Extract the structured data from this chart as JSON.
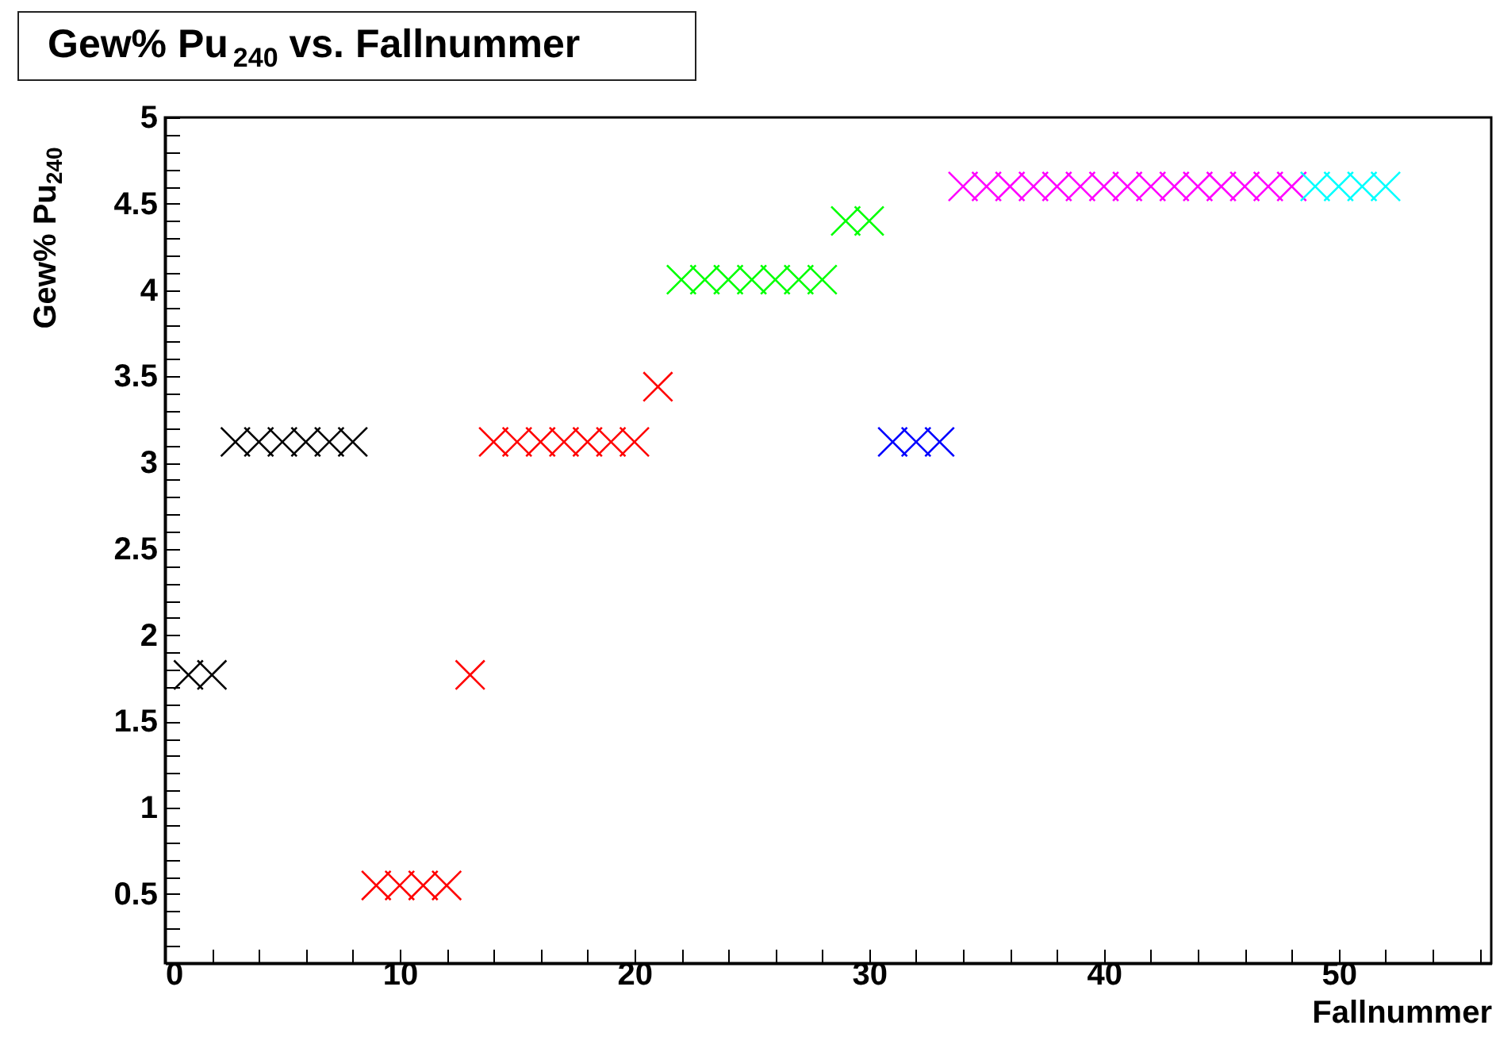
{
  "chart_data": {
    "type": "scatter",
    "title": "Gew% Pu$_{240}$ vs. Fallnummer",
    "xlabel": "Fallnummer",
    "ylabel": "Gew% Pu$_{240}$",
    "marker": "cross",
    "grid": false,
    "legend": false,
    "xlim": [
      0,
      56.5
    ],
    "ylim": [
      0.1,
      5
    ],
    "xticks": [
      0,
      {
        "value": 2,
        "label": null
      },
      {
        "value": 4,
        "label": null
      },
      {
        "value": 6,
        "label": null
      },
      {
        "value": 8,
        "label": null
      },
      10,
      {
        "value": 12,
        "label": null
      },
      {
        "value": 14,
        "label": null
      },
      {
        "value": 16,
        "label": null
      },
      {
        "value": 18,
        "label": null
      },
      20,
      {
        "value": 22,
        "label": null
      },
      {
        "value": 24,
        "label": null
      },
      {
        "value": 26,
        "label": null
      },
      {
        "value": 28,
        "label": null
      },
      30,
      {
        "value": 32,
        "label": null
      },
      {
        "value": 34,
        "label": null
      },
      {
        "value": 36,
        "label": null
      },
      {
        "value": 38,
        "label": null
      },
      40,
      {
        "value": 42,
        "label": null
      },
      {
        "value": 44,
        "label": null
      },
      {
        "value": 46,
        "label": null
      },
      {
        "value": 48,
        "label": null
      },
      50,
      {
        "value": 52,
        "label": null
      },
      {
        "value": 54,
        "label": null
      },
      {
        "value": 56,
        "label": null
      }
    ],
    "yticks": [
      {
        "value": 0.2,
        "label": null
      },
      {
        "value": 0.3,
        "label": null
      },
      {
        "value": 0.4,
        "label": null
      },
      0.5,
      {
        "value": 0.6,
        "label": null
      },
      {
        "value": 0.7,
        "label": null
      },
      {
        "value": 0.8,
        "label": null
      },
      {
        "value": 0.9,
        "label": null
      },
      1,
      {
        "value": 1.1,
        "label": null
      },
      {
        "value": 1.2,
        "label": null
      },
      {
        "value": 1.3,
        "label": null
      },
      {
        "value": 1.4,
        "label": null
      },
      1.5,
      {
        "value": 1.6,
        "label": null
      },
      {
        "value": 1.7,
        "label": null
      },
      {
        "value": 1.8,
        "label": null
      },
      {
        "value": 1.9,
        "label": null
      },
      2,
      {
        "value": 2.1,
        "label": null
      },
      {
        "value": 2.2,
        "label": null
      },
      {
        "value": 2.3,
        "label": null
      },
      {
        "value": 2.4,
        "label": null
      },
      2.5,
      {
        "value": 2.6,
        "label": null
      },
      {
        "value": 2.7,
        "label": null
      },
      {
        "value": 2.8,
        "label": null
      },
      {
        "value": 2.9,
        "label": null
      },
      3,
      {
        "value": 3.1,
        "label": null
      },
      {
        "value": 3.2,
        "label": null
      },
      {
        "value": 3.3,
        "label": null
      },
      {
        "value": 3.4,
        "label": null
      },
      3.5,
      {
        "value": 3.6,
        "label": null
      },
      {
        "value": 3.7,
        "label": null
      },
      {
        "value": 3.8,
        "label": null
      },
      {
        "value": 3.9,
        "label": null
      },
      4,
      {
        "value": 4.1,
        "label": null
      },
      {
        "value": 4.2,
        "label": null
      },
      {
        "value": 4.3,
        "label": null
      },
      {
        "value": 4.4,
        "label": null
      },
      4.5,
      {
        "value": 4.6,
        "label": null
      },
      {
        "value": 4.7,
        "label": null
      },
      {
        "value": 4.8,
        "label": null
      },
      {
        "value": 4.9,
        "label": null
      },
      5
    ],
    "series": [
      {
        "color": "#000000",
        "x": [
          1,
          2,
          3,
          4,
          5,
          6,
          7,
          8
        ],
        "values": [
          1.77,
          1.77,
          3.12,
          3.12,
          3.12,
          3.12,
          3.12,
          3.12
        ]
      },
      {
        "color": "#ff0000",
        "x": [
          9,
          10,
          11,
          12,
          13,
          14,
          15,
          16,
          17,
          18,
          19,
          20,
          21
        ],
        "values": [
          0.55,
          0.55,
          0.55,
          0.55,
          1.77,
          3.12,
          3.12,
          3.12,
          3.12,
          3.12,
          3.12,
          3.12,
          3.44
        ]
      },
      {
        "color": "#00ff00",
        "x": [
          22,
          23,
          24,
          25,
          26,
          27,
          28,
          29,
          30
        ],
        "values": [
          4.06,
          4.06,
          4.06,
          4.06,
          4.06,
          4.06,
          4.06,
          4.4,
          4.4
        ]
      },
      {
        "color": "#0000ff",
        "x": [
          31,
          32,
          33
        ],
        "values": [
          3.12,
          3.12,
          3.12
        ]
      },
      {
        "color": "#ff00ff",
        "x": [
          34,
          35,
          36,
          37,
          38,
          39,
          40,
          41,
          42,
          43,
          44,
          45,
          46,
          47,
          48
        ],
        "values": [
          4.6,
          4.6,
          4.6,
          4.6,
          4.6,
          4.6,
          4.6,
          4.6,
          4.6,
          4.6,
          4.6,
          4.6,
          4.6,
          4.6,
          4.6
        ]
      },
      {
        "color": "#00ffff",
        "x": [
          49,
          50,
          51,
          52
        ],
        "values": [
          4.6,
          4.6,
          4.6,
          4.6
        ]
      }
    ]
  }
}
